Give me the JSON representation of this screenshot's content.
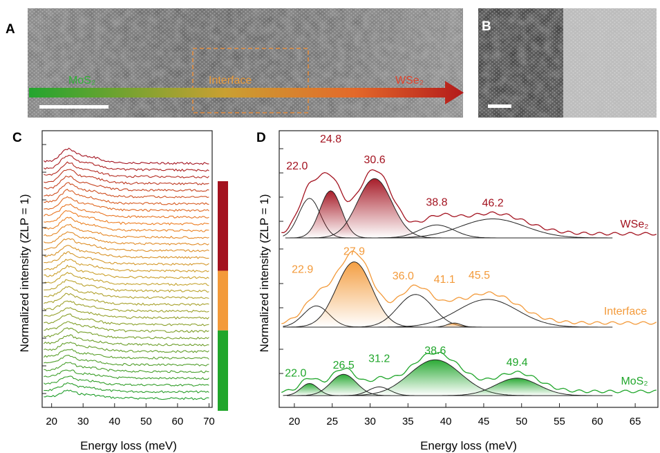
{
  "panels": {
    "a": {
      "letter": "A",
      "labels": {
        "left": "MoS₂",
        "mid": "Interface",
        "right": "WSe₂"
      }
    },
    "b": {
      "letter": "B"
    },
    "c": {
      "letter": "C",
      "ylabel": "Normalized intensity (ZLP = 1)",
      "xlabel": "Energy loss (meV)"
    },
    "d": {
      "letter": "D",
      "ylabel": "Normalized intensity (ZLP = 1)",
      "xlabel": "Energy loss (meV)"
    }
  },
  "colors": {
    "wse2": "#a3121f",
    "interface": "#f39a3a",
    "mos2": "#20a62b",
    "crop_box": "#e08a3c"
  },
  "chart_data": [
    {
      "type": "line",
      "panel": "C",
      "xlabel": "Energy loss (meV)",
      "ylabel": "Normalized intensity (ZLP = 1)",
      "xlim": [
        17,
        71
      ],
      "xticks": [
        20,
        30,
        40,
        50,
        60,
        70
      ],
      "n_spectra": 36,
      "peak_energy": 25,
      "color_bar": [
        {
          "color": "#a3121f",
          "fraction": 0.39
        },
        {
          "color": "#f39a3a",
          "fraction": 0.26
        },
        {
          "color": "#20a62b",
          "fraction": 0.35
        }
      ]
    },
    {
      "type": "area",
      "panel": "D",
      "xlabel": "Energy loss (meV)",
      "ylabel": "Normalized intensity (ZLP = 1)",
      "xlim": [
        18,
        68
      ],
      "xticks": [
        20,
        25,
        30,
        35,
        40,
        45,
        50,
        55,
        60,
        65
      ],
      "series": [
        {
          "name": "WSe₂",
          "color": "#a3121f",
          "peaks": [
            {
              "center": 22.0,
              "label": "22.0",
              "amp": 0.52,
              "width": 2.0,
              "filled": false
            },
            {
              "center": 24.8,
              "label": "24.8",
              "amp": 0.62,
              "width": 2.0,
              "filled": true
            },
            {
              "center": 30.6,
              "label": "30.6",
              "amp": 0.78,
              "width": 3.2,
              "filled": true
            },
            {
              "center": 38.8,
              "label": "38.8",
              "amp": 0.17,
              "width": 3.2,
              "filled": false
            },
            {
              "center": 46.2,
              "label": "46.2",
              "amp": 0.25,
              "width": 6.0,
              "filled": false
            }
          ]
        },
        {
          "name": "Interface",
          "color": "#f39a3a",
          "peaks": [
            {
              "center": 22.9,
              "label": "22.9",
              "amp": 0.26,
              "width": 2.4,
              "filled": false
            },
            {
              "center": 27.9,
              "label": "27.9",
              "amp": 0.8,
              "width": 3.3,
              "filled": true
            },
            {
              "center": 36.0,
              "label": "36.0",
              "amp": 0.4,
              "width": 3.3,
              "filled": false
            },
            {
              "center": 41.1,
              "label": "41.1",
              "amp": 0.05,
              "width": 1.3,
              "filled": true
            },
            {
              "center": 45.5,
              "label": "45.5",
              "amp": 0.34,
              "width": 5.6,
              "filled": false
            }
          ]
        },
        {
          "name": "MoS₂",
          "color": "#20a62b",
          "peaks": [
            {
              "center": 22.0,
              "label": "22.0",
              "amp": 0.25,
              "width": 1.6,
              "filled": true
            },
            {
              "center": 26.5,
              "label": "26.5",
              "amp": 0.44,
              "width": 2.4,
              "filled": true
            },
            {
              "center": 31.2,
              "label": "31.2",
              "amp": 0.18,
              "width": 2.0,
              "filled": false
            },
            {
              "center": 38.6,
              "label": "38.6",
              "amp": 0.74,
              "width": 4.8,
              "filled": true
            },
            {
              "center": 49.4,
              "label": "49.4",
              "amp": 0.36,
              "width": 4.0,
              "filled": true
            }
          ]
        }
      ]
    }
  ]
}
